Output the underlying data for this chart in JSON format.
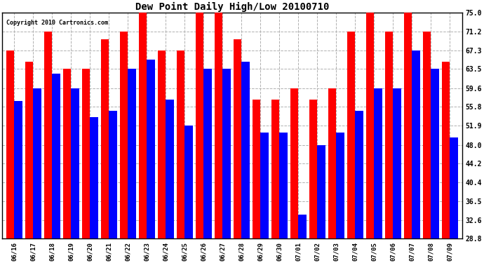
{
  "title": "Dew Point Daily High/Low 20100710",
  "copyright": "Copyright 2010 Cartronics.com",
  "dates": [
    "06/16",
    "06/17",
    "06/18",
    "06/19",
    "06/20",
    "06/21",
    "06/22",
    "06/23",
    "06/24",
    "06/25",
    "06/26",
    "06/27",
    "06/28",
    "06/29",
    "06/30",
    "07/01",
    "07/02",
    "07/03",
    "07/04",
    "07/05",
    "07/06",
    "07/07",
    "07/08",
    "07/09"
  ],
  "highs": [
    67.3,
    65.0,
    71.2,
    63.5,
    63.5,
    69.5,
    71.2,
    75.0,
    67.3,
    67.3,
    75.0,
    75.0,
    69.5,
    57.2,
    57.2,
    59.6,
    57.2,
    59.6,
    71.2,
    75.0,
    71.2,
    75.0,
    71.2,
    65.0
  ],
  "lows": [
    57.0,
    59.6,
    62.5,
    59.6,
    53.6,
    55.0,
    63.5,
    65.4,
    57.2,
    51.9,
    63.5,
    63.5,
    65.0,
    50.5,
    50.5,
    33.8,
    48.0,
    50.5,
    55.0,
    59.6,
    59.6,
    67.3,
    63.5,
    49.5
  ],
  "high_color": "#ff0000",
  "low_color": "#0000ff",
  "bg_color": "#ffffff",
  "plot_bg_color": "#ffffff",
  "grid_color": "#b0b0b0",
  "ylim_min": 28.8,
  "ylim_max": 75.0,
  "yticks": [
    28.8,
    32.6,
    36.5,
    40.4,
    44.2,
    48.0,
    51.9,
    55.8,
    59.6,
    63.5,
    67.3,
    71.2,
    75.0
  ]
}
